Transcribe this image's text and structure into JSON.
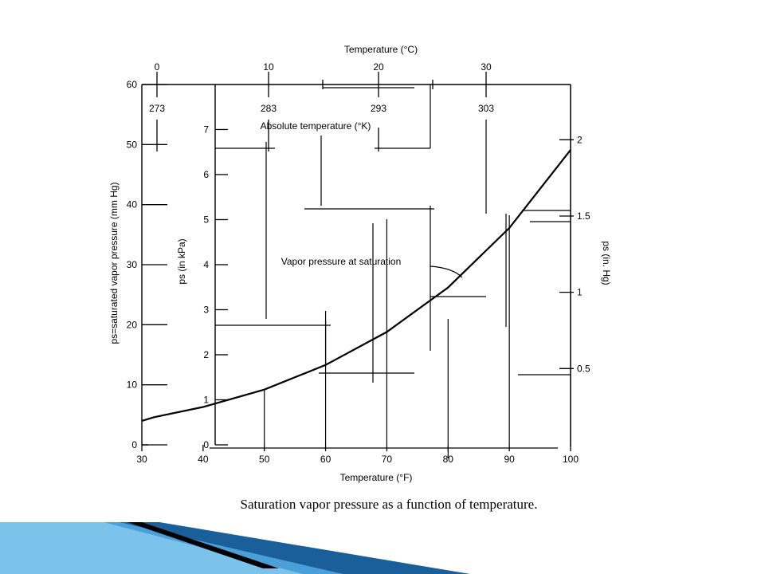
{
  "chart_data": {
    "type": "line",
    "caption": "Saturation vapor pressure as a function of temperature.",
    "annotation": "Vapor pressure at saturation",
    "x_bottom": {
      "label": "Temperature (°F)",
      "range": [
        30,
        100
      ],
      "ticks": [
        "30",
        "40",
        "50",
        "60",
        "70",
        "80",
        "90",
        "100"
      ]
    },
    "x_top_celsius": {
      "label": "Temperature (°C)",
      "ticks": [
        "0",
        "10",
        "20",
        "30"
      ]
    },
    "x_top_kelvin": {
      "label": "Absolute temperature (°K)",
      "ticks": [
        "273",
        "283",
        "293",
        "303"
      ]
    },
    "y_left_mmhg": {
      "label": "ps=saturated vapor pressure (mm Hg)",
      "range": [
        0,
        60
      ],
      "ticks": [
        "0",
        "10",
        "20",
        "30",
        "40",
        "50",
        "60"
      ]
    },
    "y_inner_kpa": {
      "label": "ps (in kPa)",
      "range": [
        0,
        7
      ],
      "ticks": [
        "0",
        "1",
        "2",
        "3",
        "4",
        "5",
        "6",
        "7"
      ]
    },
    "y_right_inhg": {
      "label": "ps (in. Hg)",
      "range": [
        0,
        2
      ],
      "ticks": [
        "0.5",
        "1",
        "1.5",
        "2"
      ]
    },
    "series": [
      {
        "x": [
          30,
          32,
          40,
          50,
          60,
          70,
          80,
          90,
          100
        ],
        "y": [
          4.0,
          4.6,
          6.3,
          9.2,
          13.3,
          18.8,
          26.2,
          36.1,
          49.1
        ]
      }
    ],
    "grid": "partial"
  },
  "footer": {
    "colors": [
      "#4a9fd8",
      "#7cc3ec",
      "#1a5f9a",
      "#000000"
    ]
  }
}
